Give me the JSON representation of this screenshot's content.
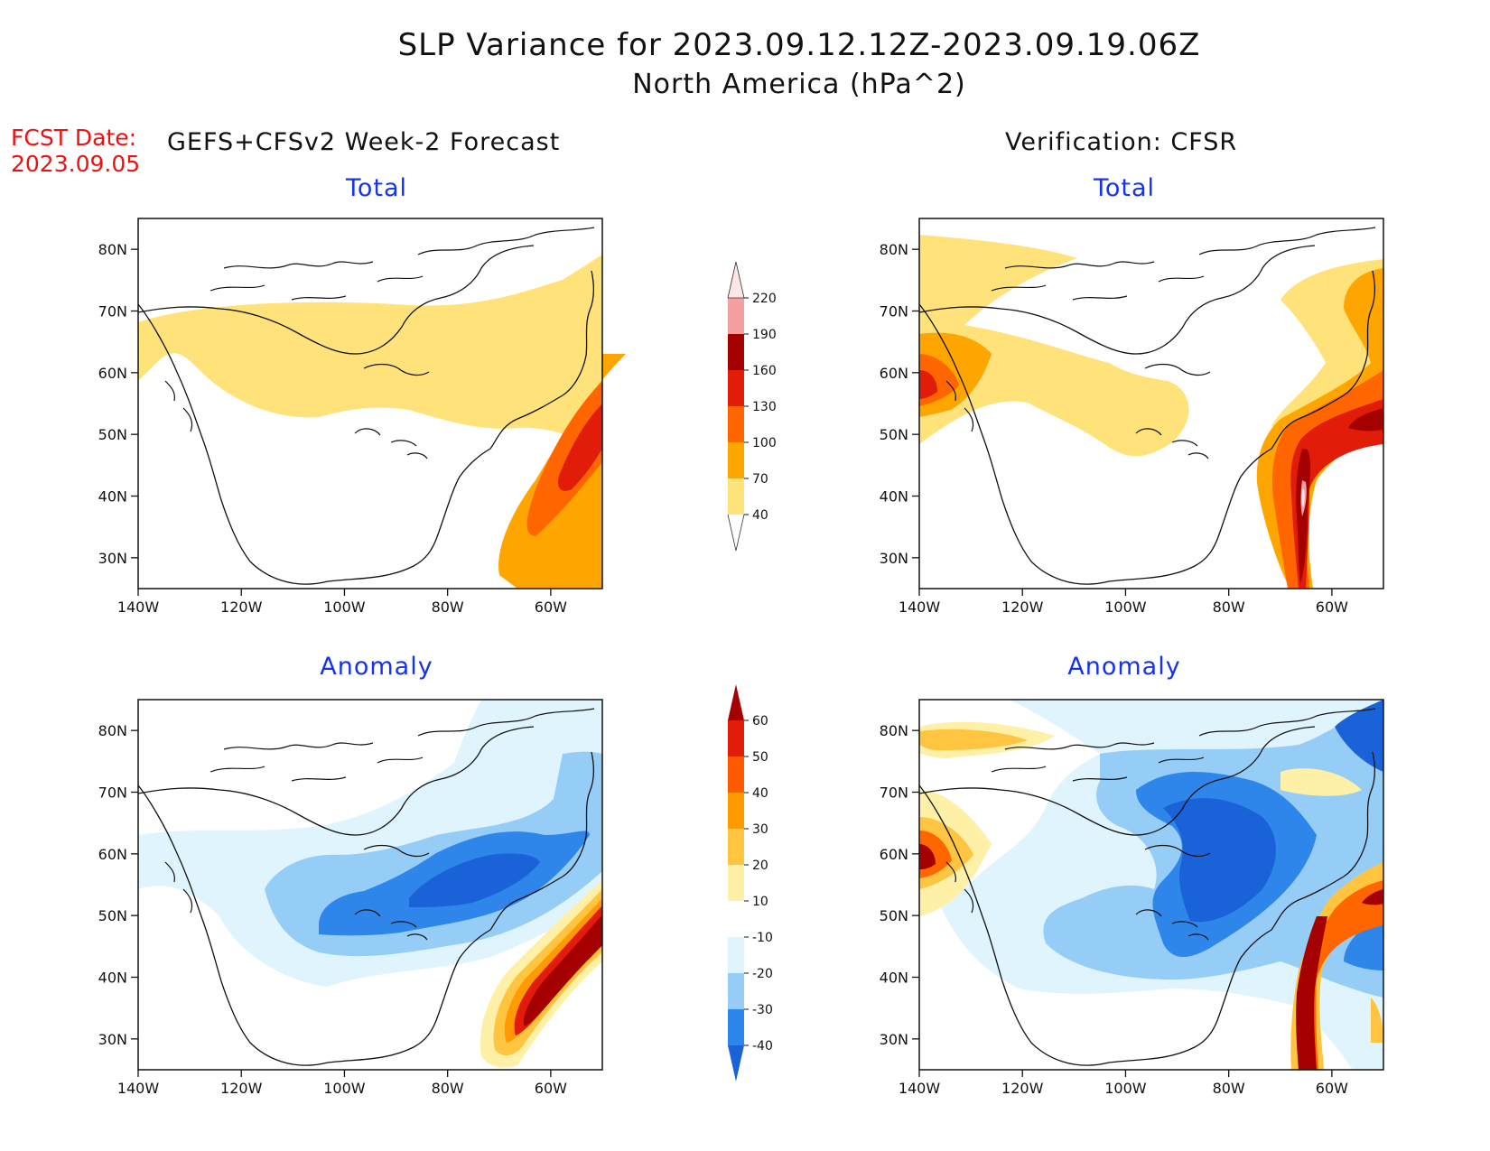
{
  "title": "SLP Variance for 2023.09.12.12Z-2023.09.19.06Z",
  "subtitle": "North America (hPa^2)",
  "fcst_label": "FCST Date:",
  "fcst_date": "2023.09.05",
  "left_column_title": "GEFS+CFSv2 Week-2 Forecast",
  "right_column_title": "Verification: CFSR",
  "panels": {
    "forecast_total": "Total",
    "verification_total": "Total",
    "forecast_anomaly": "Anomaly",
    "verification_anomaly": "Anomaly"
  },
  "lat_ticks": [
    "80N",
    "70N",
    "60N",
    "50N",
    "40N",
    "30N"
  ],
  "lon_ticks": [
    "140W",
    "120W",
    "100W",
    "80W",
    "60W"
  ],
  "chart_data": {
    "type": "heatmap",
    "region": "North America",
    "projection": "lat-lon",
    "lon_range": [
      -140,
      -50
    ],
    "lat_range": [
      25,
      85
    ],
    "total_colorbar": {
      "levels": [
        40,
        70,
        100,
        130,
        160,
        190,
        220
      ],
      "labels": [
        "40",
        "70",
        "100",
        "130",
        "160",
        "190",
        "220"
      ],
      "colors": [
        "#ffe27a",
        "#ffa500",
        "#ff6600",
        "#e11d0a",
        "#a50000",
        "#f4a0a0",
        "#ffe6e6"
      ]
    },
    "anomaly_colorbar": {
      "levels": [
        -40,
        -30,
        -20,
        -10,
        10,
        20,
        30,
        40,
        50,
        60
      ],
      "labels": [
        "-40",
        "-30",
        "-20",
        "-10",
        "10",
        "20",
        "30",
        "40",
        "50",
        "60"
      ],
      "colors": [
        "#1a62d8",
        "#2f86ea",
        "#96cdf7",
        "#dff4fd",
        "#ffffff",
        "#fff0a8",
        "#ffc440",
        "#ff9a00",
        "#ff5a00",
        "#e11d0a",
        "#a50000"
      ]
    }
  }
}
